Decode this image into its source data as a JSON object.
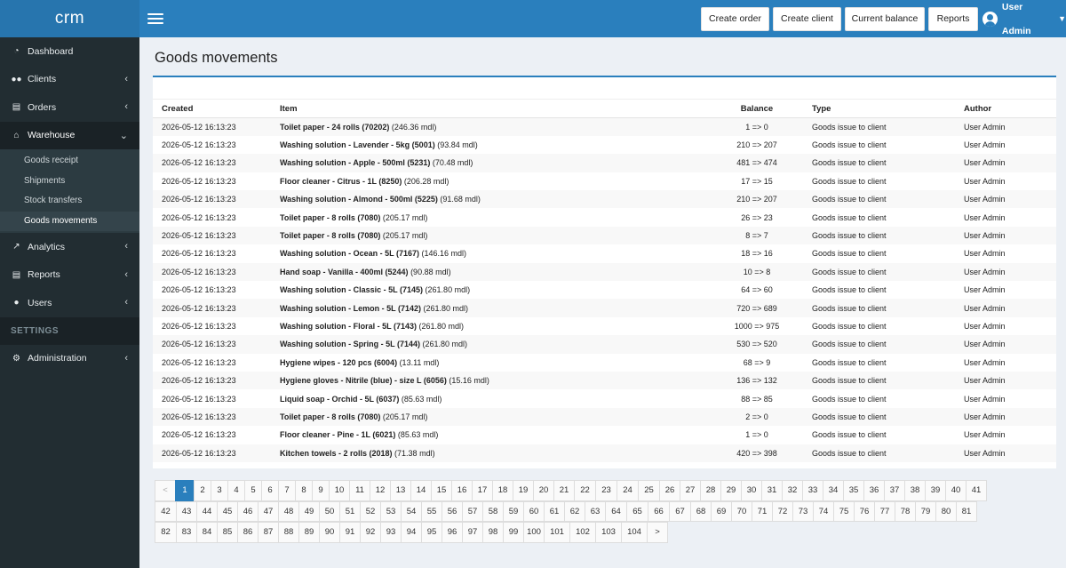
{
  "brand": "crm",
  "header": {
    "buttons": [
      "Create order",
      "Create client",
      "Current balance",
      "Reports"
    ],
    "user": "User Admin"
  },
  "sidebar": {
    "items": [
      {
        "label": "Dashboard",
        "icon": "dashboard-icon"
      },
      {
        "label": "Clients",
        "icon": "users-icon"
      },
      {
        "label": "Orders",
        "icon": "file-icon"
      },
      {
        "label": "Warehouse",
        "icon": "home-icon"
      },
      {
        "label": "Analytics",
        "icon": "line-chart-icon"
      },
      {
        "label": "Reports",
        "icon": "file-icon"
      },
      {
        "label": "Users",
        "icon": "user-icon"
      },
      {
        "label": "Administration",
        "icon": "gear-icon"
      }
    ],
    "warehouse_sub": [
      "Goods receipt",
      "Shipments",
      "Stock transfers",
      "Goods movements"
    ],
    "settings_header": "SETTINGS"
  },
  "page": {
    "title": "Goods movements",
    "columns": [
      "Created",
      "Item",
      "Balance",
      "Type",
      "Author"
    ]
  },
  "rows": [
    {
      "created": "2026-05-12 16:13:23",
      "item": "Toilet paper - 24 rolls (70202)",
      "price": " (246.36 mdl)",
      "balance": "1 => 0",
      "type": "Goods issue to client",
      "author": "User Admin"
    },
    {
      "created": "2026-05-12 16:13:23",
      "item": "Washing solution - Lavender - 5kg (5001)",
      "price": " (93.84 mdl)",
      "balance": "210 => 207",
      "type": "Goods issue to client",
      "author": "User Admin"
    },
    {
      "created": "2026-05-12 16:13:23",
      "item": "Washing solution - Apple - 500ml (5231)",
      "price": " (70.48 mdl)",
      "balance": "481 => 474",
      "type": "Goods issue to client",
      "author": "User Admin"
    },
    {
      "created": "2026-05-12 16:13:23",
      "item": "Floor cleaner - Citrus - 1L (8250)",
      "price": " (206.28 mdl)",
      "balance": "17 => 15",
      "type": "Goods issue to client",
      "author": "User Admin"
    },
    {
      "created": "2026-05-12 16:13:23",
      "item": "Washing solution - Almond - 500ml (5225)",
      "price": " (91.68 mdl)",
      "balance": "210 => 207",
      "type": "Goods issue to client",
      "author": "User Admin"
    },
    {
      "created": "2026-05-12 16:13:23",
      "item": "Toilet paper - 8 rolls (7080)",
      "price": " (205.17 mdl)",
      "balance": "26 => 23",
      "type": "Goods issue to client",
      "author": "User Admin"
    },
    {
      "created": "2026-05-12 16:13:23",
      "item": "Toilet paper - 8 rolls (7080)",
      "price": " (205.17 mdl)",
      "balance": "8 => 7",
      "type": "Goods issue to client",
      "author": "User Admin"
    },
    {
      "created": "2026-05-12 16:13:23",
      "item": "Washing solution - Ocean - 5L (7167)",
      "price": " (146.16 mdl)",
      "balance": "18 => 16",
      "type": "Goods issue to client",
      "author": "User Admin"
    },
    {
      "created": "2026-05-12 16:13:23",
      "item": "Hand soap - Vanilla - 400ml (5244)",
      "price": " (90.88 mdl)",
      "balance": "10 => 8",
      "type": "Goods issue to client",
      "author": "User Admin"
    },
    {
      "created": "2026-05-12 16:13:23",
      "item": "Washing solution - Classic - 5L (7145)",
      "price": " (261.80 mdl)",
      "balance": "64 => 60",
      "type": "Goods issue to client",
      "author": "User Admin"
    },
    {
      "created": "2026-05-12 16:13:23",
      "item": "Washing solution - Lemon - 5L (7142)",
      "price": " (261.80 mdl)",
      "balance": "720 => 689",
      "type": "Goods issue to client",
      "author": "User Admin"
    },
    {
      "created": "2026-05-12 16:13:23",
      "item": "Washing solution - Floral - 5L (7143)",
      "price": " (261.80 mdl)",
      "balance": "1000 => 975",
      "type": "Goods issue to client",
      "author": "User Admin"
    },
    {
      "created": "2026-05-12 16:13:23",
      "item": "Washing solution - Spring - 5L (7144)",
      "price": " (261.80 mdl)",
      "balance": "530 => 520",
      "type": "Goods issue to client",
      "author": "User Admin"
    },
    {
      "created": "2026-05-12 16:13:23",
      "item": "Hygiene wipes - 120 pcs (6004)",
      "price": " (13.11 mdl)",
      "balance": "68 => 9",
      "type": "Goods issue to client",
      "author": "User Admin"
    },
    {
      "created": "2026-05-12 16:13:23",
      "item": "Hygiene gloves - Nitrile (blue) - size L (6056)",
      "price": " (15.16 mdl)",
      "balance": "136 => 132",
      "type": "Goods issue to client",
      "author": "User Admin"
    },
    {
      "created": "2026-05-12 16:13:23",
      "item": "Liquid soap - Orchid - 5L (6037)",
      "price": " (85.63 mdl)",
      "balance": "88 => 85",
      "type": "Goods issue to client",
      "author": "User Admin"
    },
    {
      "created": "2026-05-12 16:13:23",
      "item": "Toilet paper - 8 rolls (7080)",
      "price": " (205.17 mdl)",
      "balance": "2 => 0",
      "type": "Goods issue to client",
      "author": "User Admin"
    },
    {
      "created": "2026-05-12 16:13:23",
      "item": "Floor cleaner - Pine - 1L (6021)",
      "price": " (85.63 mdl)",
      "balance": "1 => 0",
      "type": "Goods issue to client",
      "author": "User Admin"
    },
    {
      "created": "2026-05-12 16:13:23",
      "item": "Kitchen towels - 2 rolls (2018)",
      "price": " (71.38 mdl)",
      "balance": "420 => 398",
      "type": "Goods issue to client",
      "author": "User Admin"
    }
  ],
  "pagination": {
    "prev": "<",
    "next": ">",
    "current": "1",
    "rows": [
      [
        "<",
        "1",
        "2",
        "3",
        "4",
        "5",
        "6",
        "7",
        "8",
        "9",
        "10",
        "11",
        "12",
        "13",
        "14",
        "15",
        "16",
        "17",
        "18",
        "19",
        "20",
        "21",
        "22",
        "23",
        "24",
        "25",
        "26",
        "27",
        "28",
        "29",
        "30",
        "31",
        "32",
        "33",
        "34",
        "35",
        "36",
        "37",
        "38",
        "39",
        "40",
        "41"
      ],
      [
        "42",
        "43",
        "44",
        "45",
        "46",
        "47",
        "48",
        "49",
        "50",
        "51",
        "52",
        "53",
        "54",
        "55",
        "56",
        "57",
        "58",
        "59",
        "60",
        "61",
        "62",
        "63",
        "64",
        "65",
        "66",
        "67",
        "68",
        "69",
        "70",
        "71",
        "72",
        "73",
        "74",
        "75",
        "76",
        "77",
        "78",
        "79",
        "80",
        "81"
      ],
      [
        "82",
        "83",
        "84",
        "85",
        "86",
        "87",
        "88",
        "89",
        "90",
        "91",
        "92",
        "93",
        "94",
        "95",
        "96",
        "97",
        "98",
        "99",
        "100",
        "101",
        "102",
        "103",
        "104",
        ">"
      ]
    ]
  }
}
